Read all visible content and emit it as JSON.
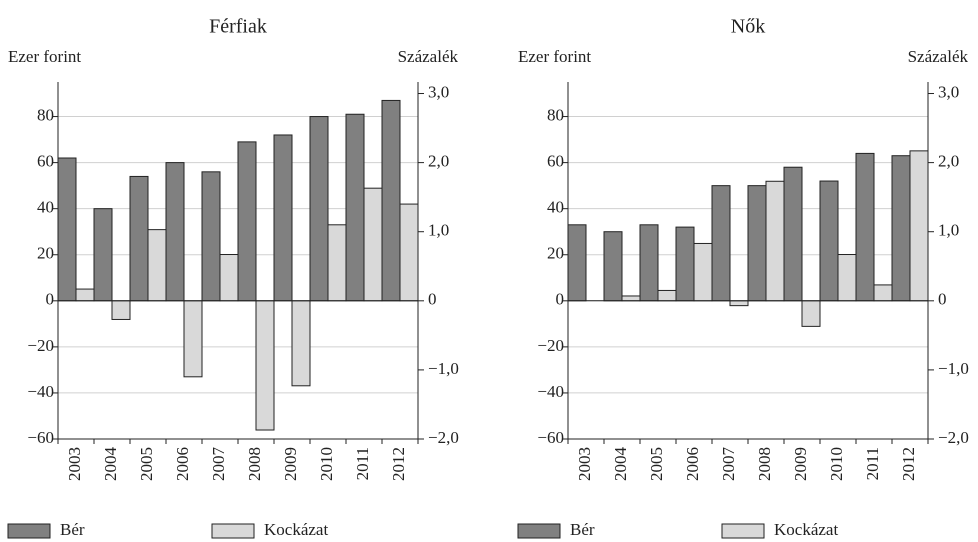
{
  "chart_data": [
    {
      "type": "bar",
      "title": "Férfiak",
      "ylabel": "Ezer forint",
      "y2label": "Százalék",
      "categories": [
        "2003",
        "2004",
        "2005",
        "2006",
        "2007",
        "2008",
        "2009",
        "2010",
        "2011",
        "2012"
      ],
      "series": [
        {
          "name": "Bér",
          "color": "#808080",
          "values": [
            62,
            40,
            54,
            60,
            56,
            69,
            72,
            80,
            81,
            87
          ]
        },
        {
          "name": "Kockázat",
          "color": "#d9d9d9",
          "axis": "y2",
          "values": [
            0.17,
            -0.27,
            1.03,
            -1.1,
            0.67,
            -1.87,
            -1.23,
            1.1,
            1.63,
            1.4
          ]
        }
      ],
      "ylim": [
        -60,
        95
      ],
      "yticks": [
        {
          "value": -60,
          "label": "−60"
        },
        {
          "value": -40,
          "label": "−40"
        },
        {
          "value": -20,
          "label": "−20"
        },
        0,
        20,
        40,
        60,
        80
      ],
      "y2lim": [
        -2,
        3.1667
      ],
      "y2ticks": [
        {
          "value": -2,
          "label": "−2,0"
        },
        {
          "value": -1,
          "label": "−1,0"
        },
        0,
        {
          "value": 1,
          "label": "1,0"
        },
        {
          "value": 2,
          "label": "2,0"
        },
        {
          "value": 3,
          "label": "3,0"
        }
      ],
      "grid": true
    },
    {
      "type": "bar",
      "title": "Nők",
      "ylabel": "Ezer forint",
      "y2label": "Százalék",
      "categories": [
        "2003",
        "2004",
        "2005",
        "2006",
        "2007",
        "2008",
        "2009",
        "2010",
        "2011",
        "2012"
      ],
      "series": [
        {
          "name": "Bér",
          "color": "#808080",
          "values": [
            33,
            30,
            33,
            32,
            50,
            50,
            58,
            52,
            64,
            63
          ]
        },
        {
          "name": "Kockázat",
          "color": "#d9d9d9",
          "axis": "y2",
          "values": [
            0,
            0.07,
            0.15,
            0.83,
            -0.07,
            1.73,
            -0.37,
            0.67,
            0.23,
            2.17
          ]
        }
      ],
      "ylim": [
        -60,
        95
      ],
      "yticks": [
        {
          "value": -60,
          "label": "−60"
        },
        {
          "value": -40,
          "label": "−40"
        },
        {
          "value": -20,
          "label": "−20"
        },
        0,
        20,
        40,
        60,
        80
      ],
      "y2lim": [
        -2,
        3.1667
      ],
      "y2ticks": [
        {
          "value": -2,
          "label": "−2,0"
        },
        {
          "value": -1,
          "label": "−1,0"
        },
        0,
        {
          "value": 1,
          "label": "1,0"
        },
        {
          "value": 2,
          "label": "2,0"
        },
        {
          "value": 3,
          "label": "3,0"
        }
      ],
      "grid": true
    }
  ]
}
